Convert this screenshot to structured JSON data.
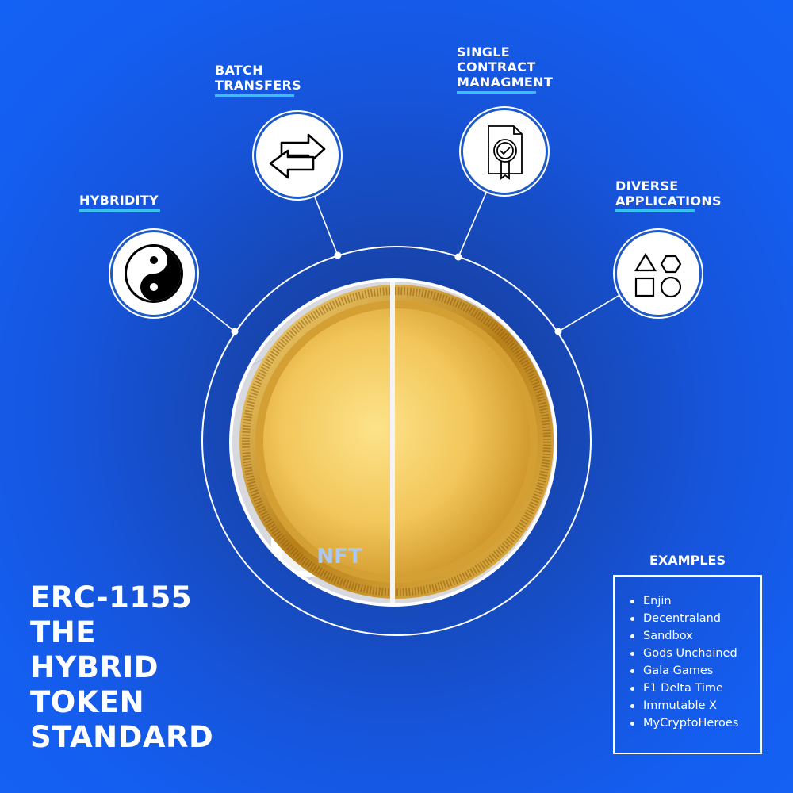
{
  "features": {
    "hybridity": {
      "label": "HYBRIDITY",
      "icon": "yin-yang-icon"
    },
    "batch_transfers": {
      "label": "BATCH\nTRANSFERS",
      "icon": "swap-arrows-icon"
    },
    "single_contract": {
      "label": "SINGLE\nCONTRACT\nMANAGMENT",
      "icon": "document-check-icon"
    },
    "diverse_applications": {
      "label": "DIVERSE\nAPPLICATIONS",
      "icon": "shapes-icon"
    }
  },
  "center": {
    "nft_label": "NFT"
  },
  "title": {
    "lines": [
      "ERC-1155",
      "THE",
      "HYBRID",
      "TOKEN",
      "STANDARD"
    ]
  },
  "examples": {
    "heading": "EXAMPLES",
    "items": [
      "Enjin",
      "Decentraland",
      "Sandbox",
      "Gods Unchained",
      "Gala Games",
      "F1 Delta Time",
      "Immutable X",
      "MyCryptoHeroes"
    ]
  },
  "colors": {
    "background": "#1654da",
    "accent_underline": "#38c2f2",
    "coin_gold": "#e9b94a",
    "nft_frame": "#d7b4a4"
  }
}
